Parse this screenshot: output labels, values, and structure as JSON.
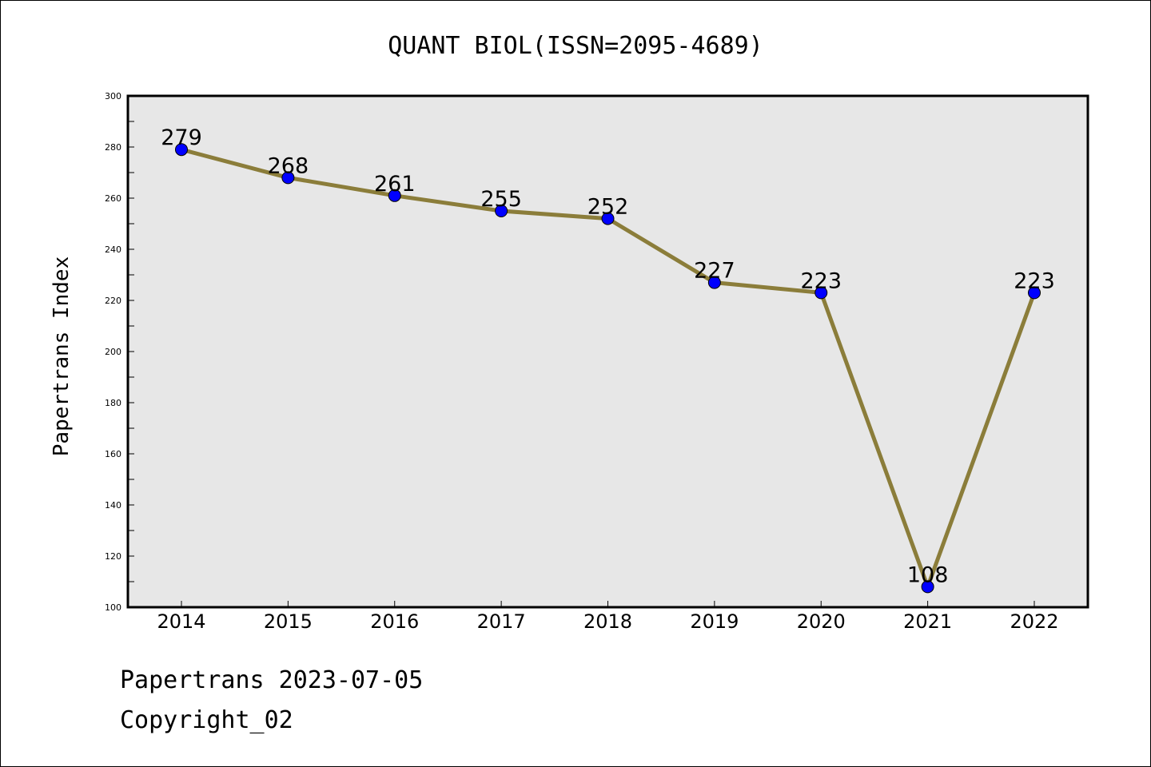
{
  "chart_data": {
    "type": "line",
    "title": "QUANT BIOL(ISSN=2095-4689)",
    "xlabel": "",
    "ylabel": "Papertrans Index",
    "categories": [
      "2014",
      "2015",
      "2016",
      "2017",
      "2018",
      "2019",
      "2020",
      "2021",
      "2022"
    ],
    "series": [
      {
        "values": [
          279,
          268,
          261,
          255,
          252,
          227,
          223,
          108,
          223
        ]
      }
    ],
    "ylim": [
      100,
      300
    ],
    "yticks": [
      100,
      120,
      140,
      160,
      180,
      200,
      220,
      240,
      260,
      280,
      300
    ],
    "grid": false,
    "legend": "none",
    "data_labels": true,
    "colors": {
      "line": "#8B7D3A",
      "marker": "#0000FF",
      "plot_background": "#E7E7E7"
    }
  },
  "footer": {
    "line1": "Papertrans 2023-07-05",
    "line2": "Copyright_02"
  }
}
